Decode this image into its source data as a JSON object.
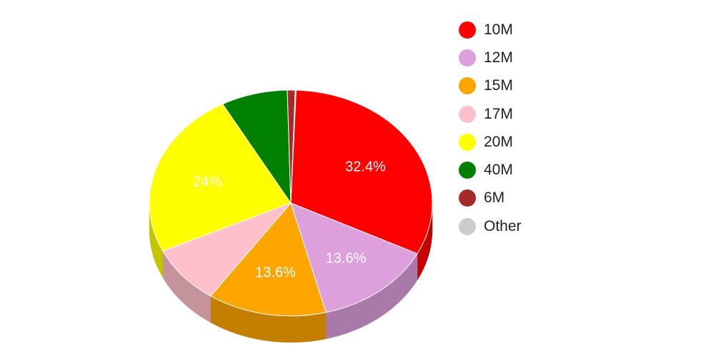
{
  "chart_data": {
    "type": "pie",
    "title": "",
    "style": "3d",
    "legend_position": "right",
    "slices": [
      {
        "label": "10M",
        "percent": 32.4,
        "color": "#ff0000",
        "shade": "#c40000",
        "data_label": "32.4%"
      },
      {
        "label": "12M",
        "percent": 13.6,
        "color": "#dda0dd",
        "shade": "#a97aa9",
        "data_label": "13.6%"
      },
      {
        "label": "15M",
        "percent": 13.6,
        "color": "#ffa500",
        "shade": "#c47f00",
        "data_label": "13.6%"
      },
      {
        "label": "17M",
        "percent": 8.4,
        "color": "#ffc0cb",
        "shade": "#c4939c",
        "data_label": ""
      },
      {
        "label": "20M",
        "percent": 24.0,
        "color": "#ffff00",
        "shade": "#c4c400",
        "data_label": "24%"
      },
      {
        "label": "40M",
        "percent": 7.6,
        "color": "#008000",
        "shade": "#006000",
        "data_label": ""
      },
      {
        "label": "6M",
        "percent": 0.9,
        "color": "#a52a2a",
        "shade": "#7a1f1f",
        "data_label": ""
      },
      {
        "label": "Other",
        "percent": 0.1,
        "color": "#cccccc",
        "shade": "#999999",
        "data_label": ""
      }
    ]
  }
}
